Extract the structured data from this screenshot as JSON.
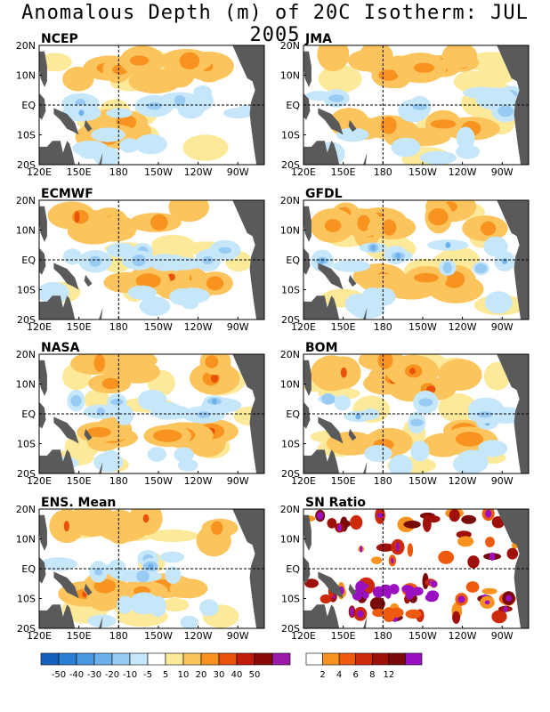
{
  "title": "Anomalous Depth (m) of 20C Isotherm: JUL 2005",
  "axes": {
    "x_ticks": [
      "120E",
      "150E",
      "180",
      "150W",
      "120W",
      "90W"
    ],
    "y_ticks": [
      "20N",
      "10N",
      "EQ",
      "10S",
      "20S"
    ]
  },
  "chart_data": [
    {
      "type": "heatmap",
      "title": "NCEP",
      "xlim": [
        "120E",
        "70W"
      ],
      "ylim": [
        "20S",
        "20N"
      ]
    },
    {
      "type": "heatmap",
      "title": "JMA",
      "xlim": [
        "120E",
        "70W"
      ],
      "ylim": [
        "20S",
        "20N"
      ]
    },
    {
      "type": "heatmap",
      "title": "ECMWF",
      "xlim": [
        "120E",
        "70W"
      ],
      "ylim": [
        "20S",
        "20N"
      ]
    },
    {
      "type": "heatmap",
      "title": "GFDL",
      "xlim": [
        "120E",
        "70W"
      ],
      "ylim": [
        "20S",
        "20N"
      ]
    },
    {
      "type": "heatmap",
      "title": "NASA",
      "xlim": [
        "120E",
        "70W"
      ],
      "ylim": [
        "20S",
        "20N"
      ]
    },
    {
      "type": "heatmap",
      "title": "BOM",
      "xlim": [
        "120E",
        "70W"
      ],
      "ylim": [
        "20S",
        "20N"
      ]
    },
    {
      "type": "heatmap",
      "title": "ENS. Mean",
      "xlim": [
        "120E",
        "70W"
      ],
      "ylim": [
        "20S",
        "20N"
      ]
    },
    {
      "type": "heatmap",
      "title": "SN Ratio",
      "xlim": [
        "120E",
        "70W"
      ],
      "ylim": [
        "20S",
        "20N"
      ]
    }
  ],
  "colorbars": {
    "anomaly": {
      "labels": [
        "-50",
        "-40",
        "-30",
        "-20",
        "-10",
        "-5",
        "5",
        "10",
        "20",
        "30",
        "40",
        "50"
      ],
      "colors": [
        "#1560bd",
        "#2a7fd4",
        "#4a98e2",
        "#6cb0ec",
        "#98cbf3",
        "#c6e6fa",
        "#ffffff",
        "#fde99a",
        "#fcc45c",
        "#f7931e",
        "#e8520a",
        "#c01a0a",
        "#8a0a0a",
        "#9a1aaa"
      ]
    },
    "sn_ratio": {
      "labels": [
        "2",
        "4",
        "6",
        "8",
        "12"
      ],
      "colors": [
        "#ffffff",
        "#f7931e",
        "#ee5a0e",
        "#cc2a0a",
        "#a0100a",
        "#7a0a0a",
        "#9a10c0"
      ]
    }
  },
  "colors": {
    "land": "#5a5a5a",
    "frame": "#000000",
    "guide": "#000000"
  }
}
